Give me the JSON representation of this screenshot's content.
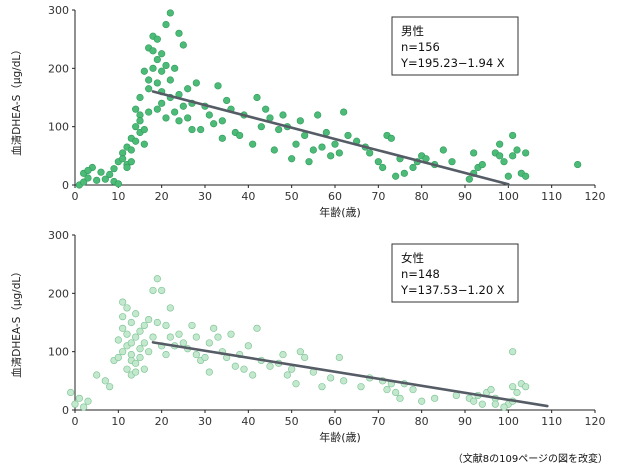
{
  "chart_data": [
    {
      "type": "scatter",
      "ylabel": "血清DHEA-S（μg/dL）",
      "xlabel": "年齢(歳)",
      "xlim": [
        0,
        120
      ],
      "ylim": [
        0,
        300
      ],
      "xticks": [
        "0",
        "10",
        "20",
        "30",
        "40",
        "50",
        "60",
        "70",
        "80",
        "90",
        "100",
        "110",
        "120"
      ],
      "yticks": [
        "0",
        "100",
        "200",
        "300"
      ],
      "legend_lines": [
        "男性",
        "n=156",
        "Y=195.23−1.94 X"
      ],
      "legend_position": "top-right",
      "point_color": "#4dbb78",
      "point_stroke": "#2f9a5a",
      "line_color": "#555c66",
      "regression": {
        "x": [
          18,
          100
        ],
        "intercept": 195.23,
        "slope": -1.94
      },
      "points": [
        [
          1,
          0
        ],
        [
          2,
          5
        ],
        [
          2,
          20
        ],
        [
          3,
          12
        ],
        [
          4,
          30
        ],
        [
          5,
          8
        ],
        [
          6,
          22
        ],
        [
          3,
          25
        ],
        [
          7,
          10
        ],
        [
          8,
          18
        ],
        [
          9,
          28
        ],
        [
          9,
          6
        ],
        [
          10,
          2
        ],
        [
          10,
          40
        ],
        [
          11,
          55
        ],
        [
          11,
          45
        ],
        [
          12,
          35
        ],
        [
          12,
          30
        ],
        [
          12,
          65
        ],
        [
          13,
          80
        ],
        [
          13,
          60
        ],
        [
          13,
          40
        ],
        [
          14,
          75
        ],
        [
          14,
          100
        ],
        [
          14,
          130
        ],
        [
          15,
          90
        ],
        [
          15,
          120
        ],
        [
          15,
          150
        ],
        [
          15,
          110
        ],
        [
          16,
          70
        ],
        [
          16,
          95
        ],
        [
          16,
          195
        ],
        [
          17,
          180
        ],
        [
          17,
          125
        ],
        [
          17,
          165
        ],
        [
          17,
          235
        ],
        [
          18,
          200
        ],
        [
          18,
          230
        ],
        [
          18,
          255
        ],
        [
          19,
          130
        ],
        [
          19,
          175
        ],
        [
          19,
          215
        ],
        [
          19,
          250
        ],
        [
          20,
          140
        ],
        [
          20,
          195
        ],
        [
          20,
          225
        ],
        [
          20,
          160
        ],
        [
          21,
          115
        ],
        [
          21,
          205
        ],
        [
          21,
          275
        ],
        [
          22,
          150
        ],
        [
          22,
          180
        ],
        [
          22,
          295
        ],
        [
          23,
          125
        ],
        [
          23,
          200
        ],
        [
          24,
          110
        ],
        [
          24,
          155
        ],
        [
          24,
          260
        ],
        [
          25,
          135
        ],
        [
          25,
          240
        ],
        [
          26,
          115
        ],
        [
          26,
          165
        ],
        [
          27,
          95
        ],
        [
          27,
          140
        ],
        [
          28,
          175
        ],
        [
          29,
          95
        ],
        [
          30,
          135
        ],
        [
          31,
          120
        ],
        [
          32,
          105
        ],
        [
          33,
          170
        ],
        [
          34,
          80
        ],
        [
          34,
          110
        ],
        [
          35,
          145
        ],
        [
          36,
          130
        ],
        [
          37,
          90
        ],
        [
          38,
          85
        ],
        [
          39,
          120
        ],
        [
          41,
          70
        ],
        [
          42,
          150
        ],
        [
          43,
          100
        ],
        [
          44,
          130
        ],
        [
          45,
          115
        ],
        [
          46,
          60
        ],
        [
          47,
          95
        ],
        [
          48,
          120
        ],
        [
          49,
          100
        ],
        [
          50,
          45
        ],
        [
          51,
          70
        ],
        [
          52,
          110
        ],
        [
          53,
          85
        ],
        [
          54,
          40
        ],
        [
          55,
          60
        ],
        [
          56,
          120
        ],
        [
          57,
          65
        ],
        [
          58,
          90
        ],
        [
          59,
          50
        ],
        [
          60,
          70
        ],
        [
          61,
          55
        ],
        [
          62,
          125
        ],
        [
          63,
          85
        ],
        [
          65,
          75
        ],
        [
          67,
          65
        ],
        [
          68,
          55
        ],
        [
          70,
          40
        ],
        [
          71,
          30
        ],
        [
          72,
          85
        ],
        [
          73,
          80
        ],
        [
          74,
          15
        ],
        [
          75,
          45
        ],
        [
          76,
          20
        ],
        [
          78,
          30
        ],
        [
          79,
          40
        ],
        [
          80,
          50
        ],
        [
          81,
          45
        ],
        [
          83,
          35
        ],
        [
          85,
          60
        ],
        [
          87,
          40
        ],
        [
          91,
          10
        ],
        [
          92,
          20
        ],
        [
          92,
          55
        ],
        [
          93,
          30
        ],
        [
          94,
          35
        ],
        [
          97,
          55
        ],
        [
          98,
          70
        ],
        [
          98,
          50
        ],
        [
          99,
          40
        ],
        [
          100,
          15
        ],
        [
          101,
          50
        ],
        [
          101,
          85
        ],
        [
          102,
          60
        ],
        [
          103,
          20
        ],
        [
          104,
          15
        ],
        [
          104,
          55
        ],
        [
          116,
          35
        ]
      ]
    },
    {
      "type": "scatter",
      "ylabel": "血清DHEA-S（μg/dL）",
      "xlabel": "年齢(歳)",
      "xlim": [
        0,
        120
      ],
      "ylim": [
        0,
        300
      ],
      "xticks": [
        "0",
        "10",
        "20",
        "30",
        "40",
        "50",
        "60",
        "70",
        "80",
        "90",
        "100",
        "110",
        "120"
      ],
      "yticks": [
        "0",
        "100",
        "200",
        "300"
      ],
      "legend_lines": [
        "女性",
        "n=148",
        "Y=137.53−1.20 X"
      ],
      "legend_position": "top-right",
      "point_color": "#c2e8cd",
      "point_stroke": "#78c08f",
      "line_color": "#555c66",
      "regression": {
        "x": [
          18,
          109
        ],
        "intercept": 137.53,
        "slope": -1.2
      },
      "points": [
        [
          -1,
          30
        ],
        [
          0,
          10
        ],
        [
          1,
          20
        ],
        [
          2,
          5
        ],
        [
          3,
          15
        ],
        [
          5,
          60
        ],
        [
          7,
          50
        ],
        [
          8,
          40
        ],
        [
          9,
          85
        ],
        [
          10,
          90
        ],
        [
          10,
          120
        ],
        [
          11,
          140
        ],
        [
          11,
          100
        ],
        [
          11,
          160
        ],
        [
          11,
          185
        ],
        [
          12,
          70
        ],
        [
          12,
          110
        ],
        [
          12,
          130
        ],
        [
          12,
          175
        ],
        [
          13,
          60
        ],
        [
          13,
          85
        ],
        [
          13,
          95
        ],
        [
          13,
          115
        ],
        [
          13,
          150
        ],
        [
          14,
          65
        ],
        [
          14,
          80
        ],
        [
          14,
          125
        ],
        [
          14,
          165
        ],
        [
          15,
          90
        ],
        [
          15,
          105
        ],
        [
          15,
          135
        ],
        [
          16,
          70
        ],
        [
          16,
          115
        ],
        [
          16,
          145
        ],
        [
          17,
          100
        ],
        [
          17,
          155
        ],
        [
          18,
          205
        ],
        [
          18,
          125
        ],
        [
          19,
          225
        ],
        [
          19,
          150
        ],
        [
          20,
          110
        ],
        [
          20,
          205
        ],
        [
          21,
          95
        ],
        [
          21,
          145
        ],
        [
          22,
          125
        ],
        [
          22,
          175
        ],
        [
          23,
          110
        ],
        [
          24,
          130
        ],
        [
          25,
          115
        ],
        [
          26,
          105
        ],
        [
          27,
          145
        ],
        [
          28,
          125
        ],
        [
          28,
          95
        ],
        [
          29,
          85
        ],
        [
          30,
          90
        ],
        [
          31,
          115
        ],
        [
          31,
          65
        ],
        [
          32,
          140
        ],
        [
          33,
          125
        ],
        [
          34,
          100
        ],
        [
          35,
          90
        ],
        [
          36,
          130
        ],
        [
          37,
          75
        ],
        [
          38,
          95
        ],
        [
          39,
          70
        ],
        [
          40,
          110
        ],
        [
          41,
          60
        ],
        [
          42,
          140
        ],
        [
          43,
          85
        ],
        [
          45,
          75
        ],
        [
          47,
          80
        ],
        [
          48,
          95
        ],
        [
          49,
          60
        ],
        [
          50,
          70
        ],
        [
          51,
          45
        ],
        [
          52,
          100
        ],
        [
          53,
          90
        ],
        [
          55,
          65
        ],
        [
          57,
          40
        ],
        [
          59,
          55
        ],
        [
          61,
          90
        ],
        [
          62,
          50
        ],
        [
          66,
          40
        ],
        [
          68,
          55
        ],
        [
          71,
          50
        ],
        [
          72,
          35
        ],
        [
          73,
          45
        ],
        [
          74,
          30
        ],
        [
          75,
          20
        ],
        [
          76,
          45
        ],
        [
          78,
          35
        ],
        [
          80,
          15
        ],
        [
          83,
          20
        ],
        [
          88,
          25
        ],
        [
          91,
          20
        ],
        [
          92,
          15
        ],
        [
          93,
          25
        ],
        [
          94,
          10
        ],
        [
          95,
          30
        ],
        [
          96,
          35
        ],
        [
          97,
          20
        ],
        [
          100,
          10
        ],
        [
          101,
          15
        ],
        [
          101,
          40
        ],
        [
          101,
          100
        ],
        [
          102,
          30
        ],
        [
          103,
          45
        ],
        [
          104,
          40
        ],
        [
          99,
          5
        ],
        [
          97,
          10
        ]
      ]
    }
  ],
  "source_note": "（文献8の109ページの図を改変）"
}
